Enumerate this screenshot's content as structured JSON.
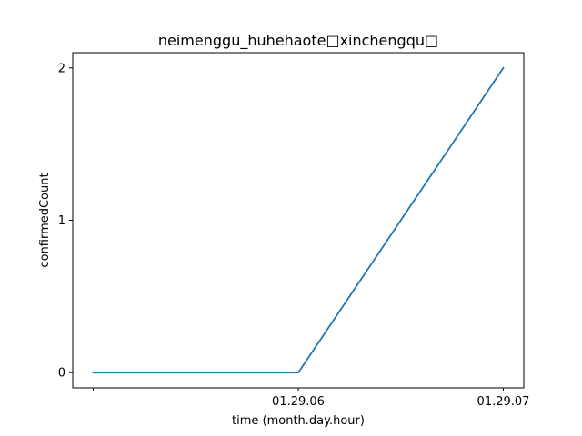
{
  "chart_data": {
    "type": "line",
    "title": "neimenggu_huhehaote□xinchengqu□",
    "xlabel": "time (month.day.hour)",
    "ylabel": "confirmedCount",
    "x": [
      "",
      "01.29.06",
      "01.29.07"
    ],
    "series": [
      {
        "values": [
          0,
          0,
          2
        ],
        "color": "#1f77b4"
      }
    ],
    "ylim": [
      -0.1,
      2.1
    ],
    "yticks": [
      0,
      1,
      2
    ],
    "ytick_labels": [
      "0",
      "1",
      "2"
    ],
    "xtick_labels": [
      "",
      "01.29.06",
      "01.29.07"
    ],
    "grid": false,
    "legend": "none"
  }
}
